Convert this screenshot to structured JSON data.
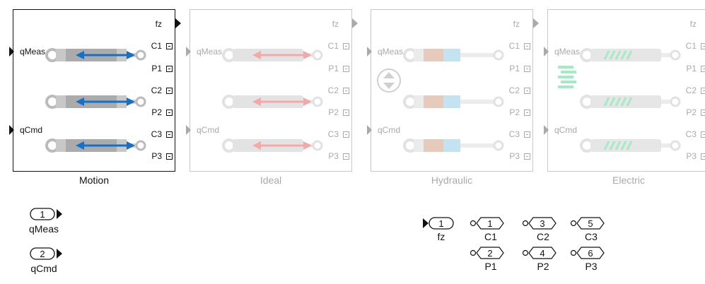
{
  "blocks": [
    {
      "label": "Motion",
      "in1": "qMeas",
      "in2": "qCmd",
      "out_fz": "fz",
      "ports": [
        "C1",
        "P1",
        "C2",
        "P2",
        "C3",
        "P3"
      ],
      "state": "active",
      "color": "#111111",
      "arrow": "#1a6fc2"
    },
    {
      "label": "Ideal",
      "in1": "qMeas",
      "in2": "qCmd",
      "out_fz": "fz",
      "ports": [
        "C1",
        "P1",
        "C2",
        "P2",
        "C3",
        "P3"
      ],
      "state": "inactive",
      "color": "#aaaaaa",
      "arrow": "#f2a9a9"
    },
    {
      "label": "Hydraulic",
      "in1": "qMeas",
      "in2": "qCmd",
      "out_fz": "fz",
      "ports": [
        "C1",
        "P1",
        "C2",
        "P2",
        "C3",
        "P3"
      ],
      "state": "inactive",
      "color": "#aaaaaa"
    },
    {
      "label": "Electric",
      "in1": "qMeas",
      "in2": "qCmd",
      "out_fz": "fz",
      "ports": [
        "C1",
        "P1",
        "C2",
        "P2",
        "C3",
        "P3"
      ],
      "state": "inactive",
      "color": "#aaaaaa"
    }
  ],
  "inports": [
    {
      "num": "1",
      "label": "qMeas"
    },
    {
      "num": "2",
      "label": "qCmd"
    }
  ],
  "outport_fz": {
    "num": "1",
    "label": "fz"
  },
  "connection_ports": [
    {
      "num": "1",
      "label": "C1"
    },
    {
      "num": "3",
      "label": "C2"
    },
    {
      "num": "5",
      "label": "C3"
    },
    {
      "num": "2",
      "label": "P1"
    },
    {
      "num": "4",
      "label": "P2"
    },
    {
      "num": "6",
      "label": "P3"
    }
  ],
  "colors": {
    "motion_arrow": "#1a6fc2",
    "ideal_arrow": "#f2a9a9",
    "hydraulic_oil": "#b3d9ec",
    "hydraulic_piston": "#d9b39c",
    "electric_coil": "#4bcf8e"
  }
}
